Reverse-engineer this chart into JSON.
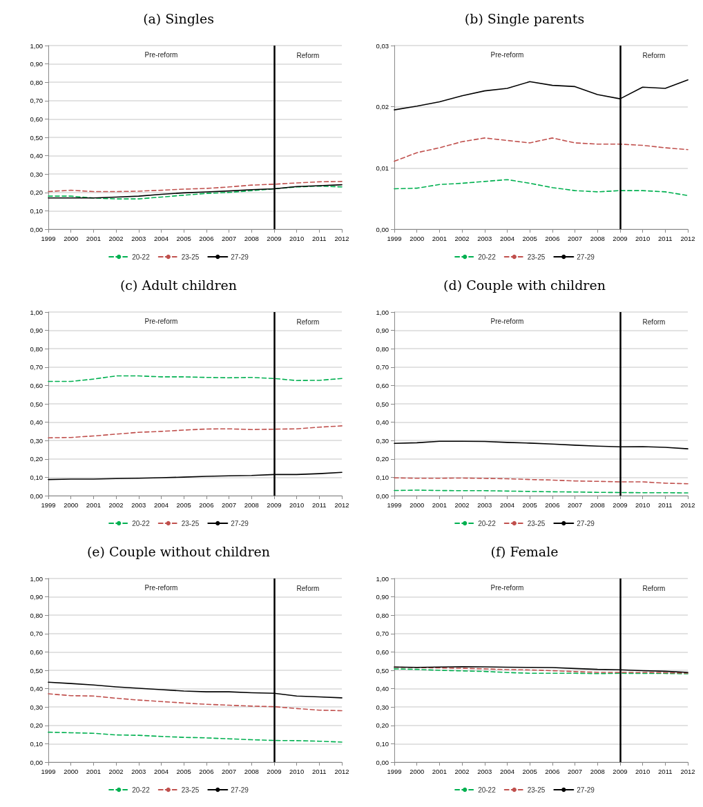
{
  "chart_data": [
    {
      "type": "line",
      "title": "(a) Singles",
      "x": [
        1999,
        2000,
        2001,
        2002,
        2003,
        2004,
        2005,
        2006,
        2007,
        2008,
        2009,
        2010,
        2011,
        2012
      ],
      "xlim": [
        1999,
        2012
      ],
      "xticks": [
        1999,
        2000,
        2001,
        2002,
        2003,
        2004,
        2005,
        2006,
        2007,
        2008,
        2009,
        2010,
        2011,
        2012
      ],
      "ylim": [
        0,
        1
      ],
      "yticks": [
        {
          "value": 0,
          "label": "0,00"
        },
        {
          "value": 0.1,
          "label": "0,10"
        },
        {
          "value": 0.2,
          "label": "0,20"
        },
        {
          "value": 0.3,
          "label": "0,30"
        },
        {
          "value": 0.4,
          "label": "0,40"
        },
        {
          "value": 0.5,
          "label": "0,50"
        },
        {
          "value": 0.6,
          "label": "0,60"
        },
        {
          "value": 0.7,
          "label": "0,70"
        },
        {
          "value": 0.8,
          "label": "0,80"
        },
        {
          "value": 0.9,
          "label": "0,90"
        },
        {
          "value": 1,
          "label": "1,00"
        }
      ],
      "grid": "y",
      "legend": "bottom",
      "marker": "none",
      "ref_lines": [
        {
          "axis": "x",
          "value": 2009,
          "color": "#000000"
        }
      ],
      "annotations": [
        "Pre-reform",
        "Reform"
      ],
      "series": [
        {
          "name": "20-22",
          "color": "#00b050",
          "line_style": "dashed",
          "values": [
            0.18,
            0.18,
            0.17,
            0.165,
            0.165,
            0.175,
            0.185,
            0.195,
            0.2,
            0.21,
            0.22,
            0.23,
            0.235,
            0.23
          ]
        },
        {
          "name": "23-25",
          "color": "#c0504d",
          "line_style": "dashed",
          "values": [
            0.205,
            0.212,
            0.205,
            0.205,
            0.207,
            0.212,
            0.218,
            0.222,
            0.23,
            0.24,
            0.245,
            0.252,
            0.258,
            0.26
          ]
        },
        {
          "name": "27-29",
          "color": "#000000",
          "line_style": "solid",
          "values": [
            0.17,
            0.17,
            0.17,
            0.175,
            0.18,
            0.19,
            0.198,
            0.203,
            0.208,
            0.215,
            0.22,
            0.232,
            0.237,
            0.242
          ]
        }
      ]
    },
    {
      "type": "line",
      "title": "(b) Single parents",
      "x": [
        1999,
        2000,
        2001,
        2002,
        2003,
        2004,
        2005,
        2006,
        2007,
        2008,
        2009,
        2010,
        2011,
        2012
      ],
      "xlim": [
        1999,
        2012
      ],
      "xticks": [
        1999,
        2000,
        2001,
        2002,
        2003,
        2004,
        2005,
        2006,
        2007,
        2008,
        2009,
        2010,
        2011,
        2012
      ],
      "ylim": [
        0,
        0.03
      ],
      "yticks": [
        {
          "value": 0,
          "label": "0,00"
        },
        {
          "value": 0.01,
          "label": "0,01"
        },
        {
          "value": 0.02,
          "label": "0,02"
        },
        {
          "value": 0.03,
          "label": "0,03"
        }
      ],
      "grid": "y",
      "legend": "bottom",
      "marker": "none",
      "ref_lines": [
        {
          "axis": "x",
          "value": 2009,
          "color": "#000000"
        }
      ],
      "annotations": [
        "Pre-reform",
        "Reform"
      ],
      "series": [
        {
          "name": "20-22",
          "color": "#00b050",
          "line_style": "dashed",
          "values": [
            0.0066,
            0.0067,
            0.0073,
            0.0075,
            0.0078,
            0.0081,
            0.0075,
            0.0068,
            0.0063,
            0.0061,
            0.0063,
            0.0063,
            0.0061,
            0.0055
          ]
        },
        {
          "name": "23-25",
          "color": "#c0504d",
          "line_style": "dashed",
          "values": [
            0.0111,
            0.0125,
            0.0133,
            0.0143,
            0.0149,
            0.0145,
            0.0141,
            0.0149,
            0.0141,
            0.0139,
            0.0139,
            0.0137,
            0.0133,
            0.013
          ]
        },
        {
          "name": "27-29",
          "color": "#000000",
          "line_style": "solid",
          "values": [
            0.0195,
            0.0201,
            0.0208,
            0.0218,
            0.0226,
            0.023,
            0.0241,
            0.0235,
            0.0233,
            0.022,
            0.0213,
            0.0232,
            0.023,
            0.0244
          ]
        }
      ]
    },
    {
      "type": "line",
      "title": "(c) Adult children",
      "x": [
        1999,
        2000,
        2001,
        2002,
        2003,
        2004,
        2005,
        2006,
        2007,
        2008,
        2009,
        2010,
        2011,
        2012
      ],
      "xlim": [
        1999,
        2012
      ],
      "xticks": [
        1999,
        2000,
        2001,
        2002,
        2003,
        2004,
        2005,
        2006,
        2007,
        2008,
        2009,
        2010,
        2011,
        2012
      ],
      "ylim": [
        0,
        1
      ],
      "yticks": [
        {
          "value": 0,
          "label": "0,00"
        },
        {
          "value": 0.1,
          "label": "0,10"
        },
        {
          "value": 0.2,
          "label": "0,20"
        },
        {
          "value": 0.3,
          "label": "0,30"
        },
        {
          "value": 0.4,
          "label": "0,40"
        },
        {
          "value": 0.5,
          "label": "0,50"
        },
        {
          "value": 0.6,
          "label": "0,60"
        },
        {
          "value": 0.7,
          "label": "0,70"
        },
        {
          "value": 0.8,
          "label": "0,80"
        },
        {
          "value": 0.9,
          "label": "0,90"
        },
        {
          "value": 1,
          "label": "1,00"
        }
      ],
      "grid": "y",
      "legend": "bottom",
      "marker": "none",
      "ref_lines": [
        {
          "axis": "x",
          "value": 2009,
          "color": "#000000"
        }
      ],
      "annotations": [
        "Pre-reform",
        "Reform"
      ],
      "series": [
        {
          "name": "20-22",
          "color": "#00b050",
          "line_style": "dashed",
          "values": [
            0.622,
            0.622,
            0.635,
            0.652,
            0.652,
            0.647,
            0.647,
            0.644,
            0.642,
            0.644,
            0.638,
            0.627,
            0.628,
            0.638
          ]
        },
        {
          "name": "23-25",
          "color": "#c0504d",
          "line_style": "dashed",
          "values": [
            0.315,
            0.317,
            0.325,
            0.335,
            0.345,
            0.35,
            0.357,
            0.363,
            0.364,
            0.36,
            0.362,
            0.364,
            0.373,
            0.38
          ]
        },
        {
          "name": "27-29",
          "color": "#000000",
          "line_style": "solid",
          "values": [
            0.088,
            0.09,
            0.09,
            0.093,
            0.095,
            0.098,
            0.101,
            0.105,
            0.108,
            0.11,
            0.115,
            0.115,
            0.12,
            0.127
          ]
        }
      ]
    },
    {
      "type": "line",
      "title": "(d) Couple with children",
      "x": [
        1999,
        2000,
        2001,
        2002,
        2003,
        2004,
        2005,
        2006,
        2007,
        2008,
        2009,
        2010,
        2011,
        2012
      ],
      "xlim": [
        1999,
        2012
      ],
      "xticks": [
        1999,
        2000,
        2001,
        2002,
        2003,
        2004,
        2005,
        2006,
        2007,
        2008,
        2009,
        2010,
        2011,
        2012
      ],
      "ylim": [
        0,
        1
      ],
      "yticks": [
        {
          "value": 0,
          "label": "0,00"
        },
        {
          "value": 0.1,
          "label": "0,10"
        },
        {
          "value": 0.2,
          "label": "0,20"
        },
        {
          "value": 0.3,
          "label": "0,30"
        },
        {
          "value": 0.4,
          "label": "0,40"
        },
        {
          "value": 0.5,
          "label": "0,50"
        },
        {
          "value": 0.6,
          "label": "0,60"
        },
        {
          "value": 0.7,
          "label": "0,70"
        },
        {
          "value": 0.8,
          "label": "0,80"
        },
        {
          "value": 0.9,
          "label": "0,90"
        },
        {
          "value": 1,
          "label": "1,00"
        }
      ],
      "grid": "y",
      "legend": "bottom",
      "marker": "none",
      "ref_lines": [
        {
          "axis": "x",
          "value": 2009,
          "color": "#000000"
        }
      ],
      "annotations": [
        "Pre-reform",
        "Reform"
      ],
      "series": [
        {
          "name": "20-22",
          "color": "#00b050",
          "line_style": "dashed",
          "values": [
            0.028,
            0.03,
            0.028,
            0.027,
            0.027,
            0.025,
            0.023,
            0.021,
            0.02,
            0.018,
            0.017,
            0.016,
            0.016,
            0.015
          ]
        },
        {
          "name": "23-25",
          "color": "#c0504d",
          "line_style": "dashed",
          "values": [
            0.097,
            0.095,
            0.095,
            0.096,
            0.094,
            0.092,
            0.088,
            0.085,
            0.08,
            0.078,
            0.075,
            0.075,
            0.068,
            0.065
          ]
        },
        {
          "name": "27-29",
          "color": "#000000",
          "line_style": "solid",
          "values": [
            0.285,
            0.288,
            0.296,
            0.296,
            0.295,
            0.29,
            0.286,
            0.281,
            0.275,
            0.27,
            0.266,
            0.267,
            0.263,
            0.255
          ]
        }
      ]
    },
    {
      "type": "line",
      "title": "(e) Couple without children",
      "x": [
        1999,
        2000,
        2001,
        2002,
        2003,
        2004,
        2005,
        2006,
        2007,
        2008,
        2009,
        2010,
        2011,
        2012
      ],
      "xlim": [
        1999,
        2012
      ],
      "xticks": [
        1999,
        2000,
        2001,
        2002,
        2003,
        2004,
        2005,
        2006,
        2007,
        2008,
        2009,
        2010,
        2011,
        2012
      ],
      "ylim": [
        0,
        1
      ],
      "yticks": [
        {
          "value": 0,
          "label": "0,00"
        },
        {
          "value": 0.1,
          "label": "0,10"
        },
        {
          "value": 0.2,
          "label": "0,20"
        },
        {
          "value": 0.3,
          "label": "0,30"
        },
        {
          "value": 0.4,
          "label": "0,40"
        },
        {
          "value": 0.5,
          "label": "0,50"
        },
        {
          "value": 0.6,
          "label": "0,60"
        },
        {
          "value": 0.7,
          "label": "0,70"
        },
        {
          "value": 0.8,
          "label": "0,80"
        },
        {
          "value": 0.9,
          "label": "0,90"
        },
        {
          "value": 1,
          "label": "1,00"
        }
      ],
      "grid": "y",
      "legend": "bottom",
      "marker": "none",
      "ref_lines": [
        {
          "axis": "x",
          "value": 2009,
          "color": "#000000"
        }
      ],
      "annotations": [
        "Pre-reform",
        "Reform"
      ],
      "series": [
        {
          "name": "20-22",
          "color": "#00b050",
          "line_style": "dashed",
          "values": [
            0.163,
            0.16,
            0.157,
            0.148,
            0.146,
            0.14,
            0.135,
            0.132,
            0.127,
            0.122,
            0.118,
            0.117,
            0.114,
            0.109
          ]
        },
        {
          "name": "23-25",
          "color": "#c0504d",
          "line_style": "dashed",
          "values": [
            0.372,
            0.362,
            0.36,
            0.348,
            0.338,
            0.33,
            0.322,
            0.315,
            0.31,
            0.305,
            0.302,
            0.292,
            0.283,
            0.28
          ]
        },
        {
          "name": "27-29",
          "color": "#000000",
          "line_style": "solid",
          "values": [
            0.435,
            0.428,
            0.42,
            0.41,
            0.402,
            0.395,
            0.387,
            0.383,
            0.383,
            0.378,
            0.375,
            0.36,
            0.355,
            0.35
          ]
        }
      ]
    },
    {
      "type": "line",
      "title": "(f) Female",
      "x": [
        1999,
        2000,
        2001,
        2002,
        2003,
        2004,
        2005,
        2006,
        2007,
        2008,
        2009,
        2010,
        2011,
        2012
      ],
      "xlim": [
        1999,
        2012
      ],
      "xticks": [
        1999,
        2000,
        2001,
        2002,
        2003,
        2004,
        2005,
        2006,
        2007,
        2008,
        2009,
        2010,
        2011,
        2012
      ],
      "ylim": [
        0,
        1
      ],
      "yticks": [
        {
          "value": 0,
          "label": "0,00"
        },
        {
          "value": 0.1,
          "label": "0,10"
        },
        {
          "value": 0.2,
          "label": "0,20"
        },
        {
          "value": 0.3,
          "label": "0,30"
        },
        {
          "value": 0.4,
          "label": "0,40"
        },
        {
          "value": 0.5,
          "label": "0,50"
        },
        {
          "value": 0.6,
          "label": "0,60"
        },
        {
          "value": 0.7,
          "label": "0,70"
        },
        {
          "value": 0.8,
          "label": "0,80"
        },
        {
          "value": 0.9,
          "label": "0,90"
        },
        {
          "value": 1,
          "label": "1,00"
        }
      ],
      "grid": "y",
      "legend": "bottom",
      "marker": "none",
      "ref_lines": [
        {
          "axis": "x",
          "value": 2009,
          "color": "#000000"
        }
      ],
      "annotations": [
        "Pre-reform",
        "Reform"
      ],
      "series": [
        {
          "name": "20-22",
          "color": "#00b050",
          "line_style": "dashed",
          "values": [
            0.508,
            0.505,
            0.5,
            0.497,
            0.494,
            0.488,
            0.484,
            0.484,
            0.484,
            0.482,
            0.484,
            0.483,
            0.483,
            0.481
          ]
        },
        {
          "name": "23-25",
          "color": "#c0504d",
          "line_style": "dashed",
          "values": [
            0.517,
            0.515,
            0.513,
            0.511,
            0.508,
            0.504,
            0.502,
            0.498,
            0.493,
            0.489,
            0.489,
            0.489,
            0.487,
            0.485
          ]
        },
        {
          "name": "27-29",
          "color": "#000000",
          "line_style": "solid",
          "values": [
            0.518,
            0.516,
            0.518,
            0.52,
            0.519,
            0.517,
            0.516,
            0.515,
            0.51,
            0.505,
            0.503,
            0.498,
            0.495,
            0.489
          ]
        }
      ]
    }
  ]
}
